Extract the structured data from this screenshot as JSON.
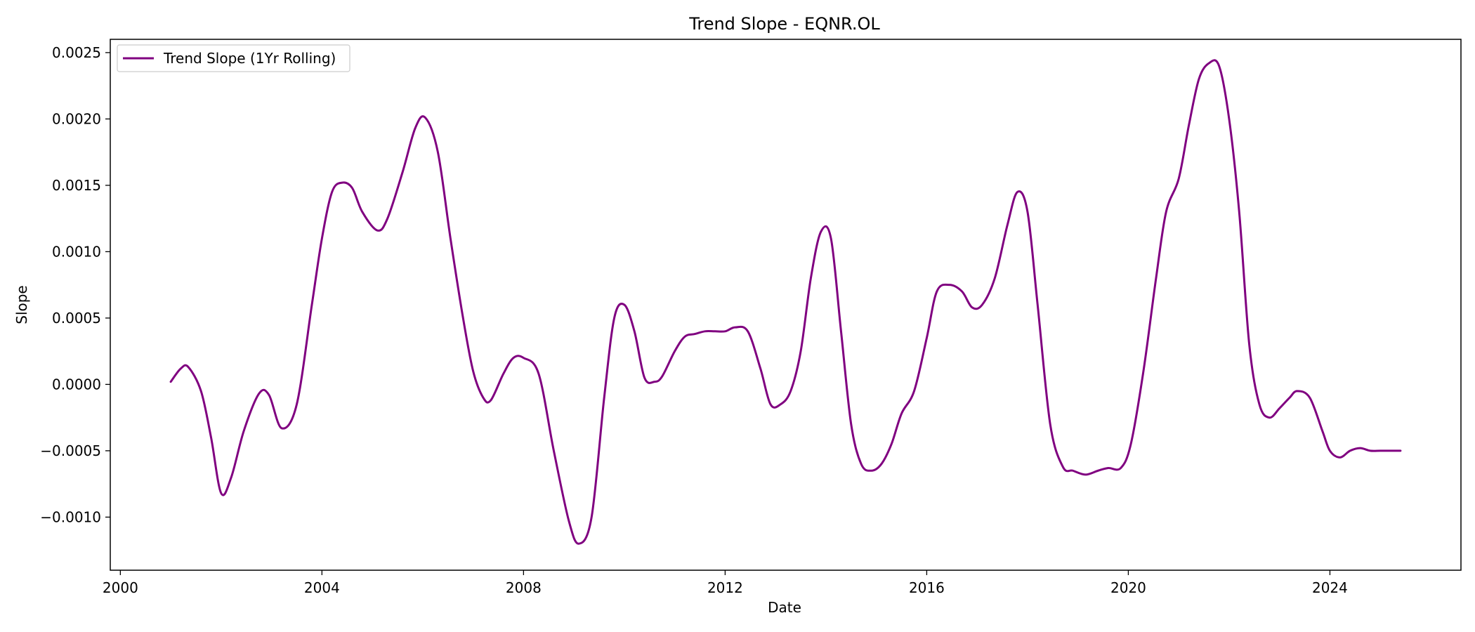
{
  "chart_data": {
    "type": "line",
    "title": "Trend Slope - EQNR.OL",
    "xlabel": "Date",
    "ylabel": "Slope",
    "xlim": [
      1999.8,
      2026.6
    ],
    "ylim": [
      -0.0014,
      0.0026
    ],
    "x_ticks": [
      2000,
      2004,
      2008,
      2012,
      2016,
      2020,
      2024
    ],
    "x_tick_labels": [
      "2000",
      "2004",
      "2008",
      "2012",
      "2016",
      "2020",
      "2024"
    ],
    "y_ticks": [
      -0.001,
      -0.0005,
      0.0,
      0.0005,
      0.001,
      0.0015,
      0.002,
      0.0025
    ],
    "y_tick_labels": [
      "−0.0010",
      "−0.0005",
      "0.0000",
      "0.0005",
      "0.0010",
      "0.0015",
      "0.0020",
      "0.0025"
    ],
    "grid": false,
    "legend_position": "top-left",
    "series": [
      {
        "name": "Trend Slope (1Yr Rolling)",
        "color": "#800080",
        "x": [
          2001.0,
          2001.2,
          2001.35,
          2001.6,
          2001.8,
          2002.0,
          2002.2,
          2002.45,
          2002.75,
          2002.95,
          2003.2,
          2003.5,
          2003.8,
          2004.0,
          2004.2,
          2004.4,
          2004.6,
          2004.8,
          2005.1,
          2005.3,
          2005.6,
          2005.85,
          2006.05,
          2006.3,
          2006.55,
          2006.8,
          2007.0,
          2007.2,
          2007.35,
          2007.6,
          2007.8,
          2008.0,
          2008.3,
          2008.6,
          2008.9,
          2009.1,
          2009.35,
          2009.6,
          2009.8,
          2010.0,
          2010.2,
          2010.4,
          2010.6,
          2010.75,
          2011.0,
          2011.2,
          2011.4,
          2011.6,
          2011.8,
          2012.0,
          2012.2,
          2012.45,
          2012.7,
          2012.9,
          2013.1,
          2013.3,
          2013.5,
          2013.7,
          2013.9,
          2014.1,
          2014.3,
          2014.5,
          2014.7,
          2014.9,
          2015.1,
          2015.3,
          2015.5,
          2015.75,
          2016.0,
          2016.2,
          2016.45,
          2016.7,
          2016.9,
          2017.1,
          2017.35,
          2017.6,
          2017.8,
          2018.0,
          2018.2,
          2018.45,
          2018.7,
          2018.9,
          2019.15,
          2019.4,
          2019.6,
          2019.85,
          2020.05,
          2020.3,
          2020.55,
          2020.75,
          2021.0,
          2021.2,
          2021.4,
          2021.6,
          2021.8,
          2022.0,
          2022.2,
          2022.4,
          2022.6,
          2022.8,
          2023.0,
          2023.2,
          2023.35,
          2023.6,
          2023.85,
          2024.0,
          2024.2,
          2024.4,
          2024.6,
          2024.8,
          2025.0,
          2025.2,
          2025.4
        ],
        "y": [
          2e-05,
          0.00012,
          0.00013,
          -5e-05,
          -0.0004,
          -0.00082,
          -0.0007,
          -0.00035,
          -7e-05,
          -8e-05,
          -0.00033,
          -0.00015,
          0.0006,
          0.0011,
          0.00145,
          0.00152,
          0.00148,
          0.0013,
          0.00116,
          0.00125,
          0.0016,
          0.00193,
          0.00201,
          0.00175,
          0.0011,
          0.0005,
          0.0001,
          -0.0001,
          -0.00012,
          8e-05,
          0.0002,
          0.0002,
          8e-05,
          -0.0005,
          -0.00103,
          -0.0012,
          -0.001,
          -0.0001,
          0.0005,
          0.0006,
          0.0004,
          5e-05,
          2e-05,
          6e-05,
          0.00025,
          0.00036,
          0.00038,
          0.0004,
          0.0004,
          0.0004,
          0.00043,
          0.0004,
          0.00012,
          -0.00015,
          -0.00015,
          -5e-05,
          0.00025,
          0.0008,
          0.00115,
          0.0011,
          0.0004,
          -0.0003,
          -0.0006,
          -0.00065,
          -0.0006,
          -0.00045,
          -0.00022,
          -5e-05,
          0.00035,
          0.0007,
          0.00075,
          0.0007,
          0.00058,
          0.0006,
          0.0008,
          0.0012,
          0.00145,
          0.0013,
          0.0006,
          -0.0003,
          -0.00062,
          -0.00065,
          -0.00068,
          -0.00065,
          -0.00063,
          -0.00063,
          -0.00045,
          0.0001,
          0.0008,
          0.0013,
          0.00155,
          0.00195,
          0.0023,
          0.00242,
          0.0024,
          0.002,
          0.0013,
          0.0003,
          -0.00015,
          -0.00025,
          -0.00018,
          -0.0001,
          -5e-05,
          -0.0001,
          -0.00035,
          -0.0005,
          -0.00055,
          -0.0005,
          -0.00048,
          -0.0005,
          -0.0005,
          -0.0005,
          -0.0005
        ]
      }
    ]
  }
}
